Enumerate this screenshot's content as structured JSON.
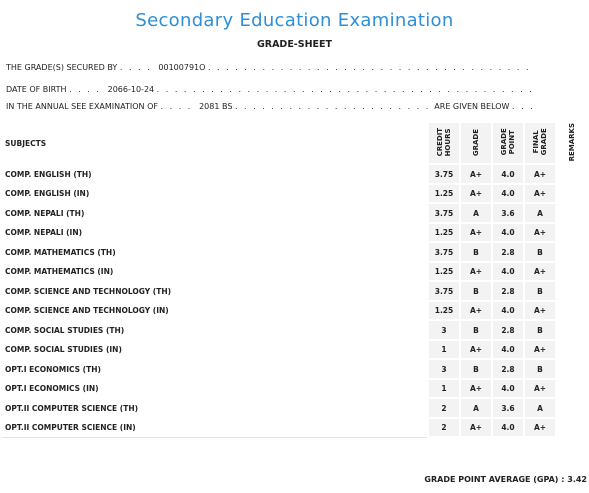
{
  "header": {
    "title": "Secondary Education Examination",
    "subtitle": "GRADE-SHEET"
  },
  "info": [
    {
      "label": "THE GRADE(S) SECURED BY",
      "value": "00100791O"
    },
    {
      "label": "DATE OF BIRTH",
      "value": "2066-10-24"
    },
    {
      "label": "IN THE ANNUAL SEE EXAMINATION OF",
      "value": "2081 BS",
      "suffix": "ARE GIVEN BELOW"
    }
  ],
  "table": {
    "columns": [
      "SUBJECTS",
      "CREDIT HOURS",
      "GRADE",
      "GRADE POINT",
      "FINAL GRADE",
      "REMARKS"
    ],
    "rows": [
      [
        "COMP. ENGLISH (TH)",
        "3.75",
        "A+",
        "4.0",
        "A+"
      ],
      [
        "COMP. ENGLISH (IN)",
        "1.25",
        "A+",
        "4.0",
        "A+"
      ],
      [
        "COMP. NEPALI (TH)",
        "3.75",
        "A",
        "3.6",
        "A"
      ],
      [
        "COMP. NEPALI (IN)",
        "1.25",
        "A+",
        "4.0",
        "A+"
      ],
      [
        "COMP. MATHEMATICS (TH)",
        "3.75",
        "B",
        "2.8",
        "B"
      ],
      [
        "COMP. MATHEMATICS (IN)",
        "1.25",
        "A+",
        "4.0",
        "A+"
      ],
      [
        "COMP. SCIENCE AND TECHNOLOGY (TH)",
        "3.75",
        "B",
        "2.8",
        "B"
      ],
      [
        "COMP. SCIENCE AND TECHNOLOGY (IN)",
        "1.25",
        "A+",
        "4.0",
        "A+"
      ],
      [
        "COMP. SOCIAL STUDIES (TH)",
        "3",
        "B",
        "2.8",
        "B"
      ],
      [
        "COMP. SOCIAL STUDIES (IN)",
        "1",
        "A+",
        "4.0",
        "A+"
      ],
      [
        "OPT.I ECONOMICS (TH)",
        "3",
        "B",
        "2.8",
        "B"
      ],
      [
        "OPT.I ECONOMICS (IN)",
        "1",
        "A+",
        "4.0",
        "A+"
      ],
      [
        "OPT.II COMPUTER SCIENCE (TH)",
        "2",
        "A",
        "3.6",
        "A"
      ],
      [
        "OPT.II COMPUTER SCIENCE (IN)",
        "2",
        "A+",
        "4.0",
        "A+"
      ]
    ]
  },
  "footer": {
    "label": "GRADE POINT AVERAGE (GPA) :",
    "value": "3.42"
  }
}
